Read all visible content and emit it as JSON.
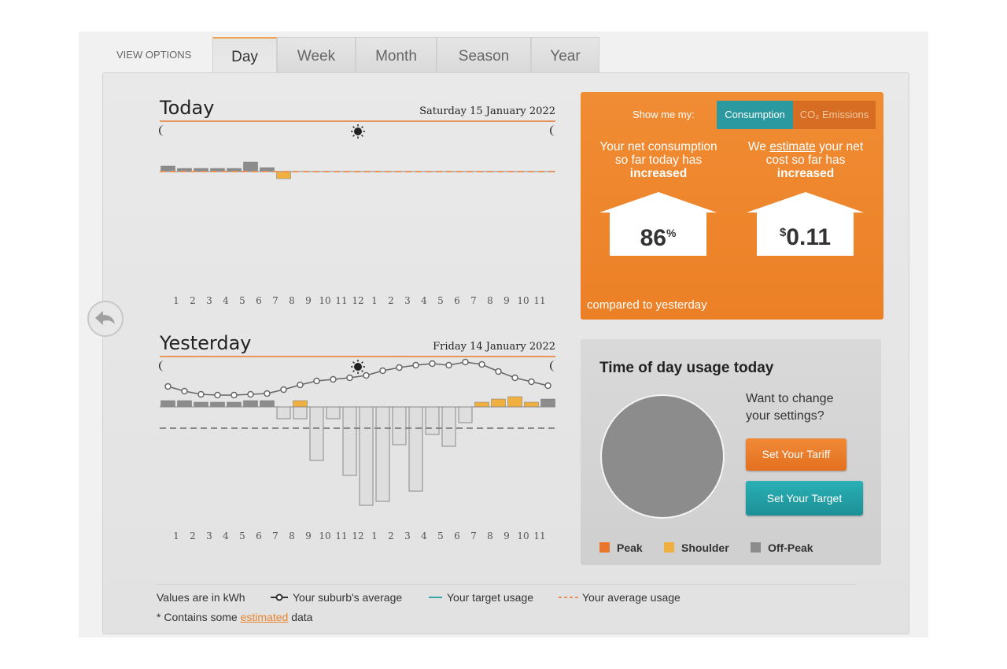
{
  "tabs": {
    "label": "VIEW OPTIONS",
    "items": [
      "Day",
      "Week",
      "Month",
      "Season",
      "Year"
    ],
    "active": 0
  },
  "charts": [
    {
      "title": "Today",
      "date": "Saturday 15 January 2022",
      "hours": [
        "1",
        "2",
        "3",
        "4",
        "5",
        "6",
        "7",
        "8",
        "9",
        "10",
        "11",
        "12",
        "1",
        "2",
        "3",
        "4",
        "5",
        "6",
        "7",
        "8",
        "9",
        "10",
        "11"
      ],
      "usage": [
        0.07,
        0.04,
        0.04,
        0.04,
        0.04,
        0.12,
        0.05,
        -0.09,
        null,
        null,
        null,
        null,
        null,
        null,
        null,
        null,
        null,
        null,
        null,
        null,
        null,
        null,
        null,
        null
      ],
      "tariff": [
        2,
        2,
        2,
        2,
        2,
        2,
        2,
        1,
        2,
        2,
        2,
        2,
        2,
        2,
        2,
        2,
        2,
        2,
        2,
        2,
        2,
        2,
        2,
        2
      ],
      "export": [
        0,
        0,
        0,
        0,
        0,
        0,
        0,
        0,
        0,
        0,
        0,
        0,
        0,
        0,
        0,
        0,
        0,
        0,
        0,
        0,
        0,
        0,
        0,
        0
      ],
      "suburb_average": null,
      "average": 0,
      "average_color": "#e8945a"
    },
    {
      "title": "Yesterday",
      "date": "Friday 14 January 2022",
      "hours": [
        "1",
        "2",
        "3",
        "4",
        "5",
        "6",
        "7",
        "8",
        "9",
        "10",
        "11",
        "12",
        "1",
        "2",
        "3",
        "4",
        "5",
        "6",
        "7",
        "8",
        "9",
        "10",
        "11"
      ],
      "usage": [
        0.08,
        0.08,
        0.06,
        0.06,
        0.06,
        0.08,
        0.08,
        0,
        0.08,
        0,
        0,
        0,
        0,
        0,
        0,
        0,
        0,
        0,
        0,
        0.06,
        0.1,
        0.13,
        0.06,
        0.1
      ],
      "tariff": [
        2,
        2,
        2,
        2,
        2,
        2,
        2,
        2,
        1,
        2,
        2,
        2,
        2,
        2,
        2,
        2,
        2,
        2,
        2,
        1,
        1,
        1,
        1,
        2
      ],
      "export": [
        0,
        0,
        0,
        0,
        0,
        0,
        0,
        -0.15,
        -0.15,
        -0.68,
        -0.15,
        -0.87,
        -1.25,
        -1.2,
        -0.48,
        -1.07,
        -0.35,
        -0.5,
        -0.2,
        0,
        0,
        0,
        0,
        0
      ],
      "suburb_average": [
        0.26,
        0.2,
        0.16,
        0.15,
        0.15,
        0.16,
        0.17,
        0.22,
        0.28,
        0.33,
        0.35,
        0.37,
        0.4,
        0.46,
        0.5,
        0.53,
        0.55,
        0.53,
        0.57,
        0.54,
        0.45,
        0.37,
        0.32,
        0.27
      ],
      "average": -0.27,
      "average_color": "#8a8a8a"
    }
  ],
  "summary": {
    "prompt": "Show me my:",
    "toggle": [
      "Consumption",
      "CO₂ Emissions"
    ],
    "left": {
      "lines": [
        "Your net consumption",
        "so far today has",
        "increased"
      ],
      "value": 86,
      "unit": "%"
    },
    "right": {
      "line1": [
        "We ",
        "estimate",
        " your net"
      ],
      "lines": [
        "cost so far has",
        "increased"
      ],
      "currency": "$",
      "value": 0.11
    },
    "footer": "compared to yesterday"
  },
  "usage_today": {
    "title": "Time of day usage today",
    "question": [
      "Want to change",
      "your settings?"
    ],
    "buttons": [
      "Set Your Tariff",
      "Set Your Target"
    ],
    "pie": {
      "labels": [
        "Peak",
        "Shoulder",
        "Off-Peak"
      ],
      "values": [
        0,
        0,
        100
      ],
      "colors": [
        "#e8762c",
        "#f0b040",
        "#8c8c8c"
      ]
    }
  },
  "legend": {
    "units": "Values are in kWh",
    "items": [
      "Your suburb's average",
      "Your target usage",
      "Your average usage"
    ],
    "note": [
      "* Contains some ",
      "estimated",
      " data"
    ]
  }
}
